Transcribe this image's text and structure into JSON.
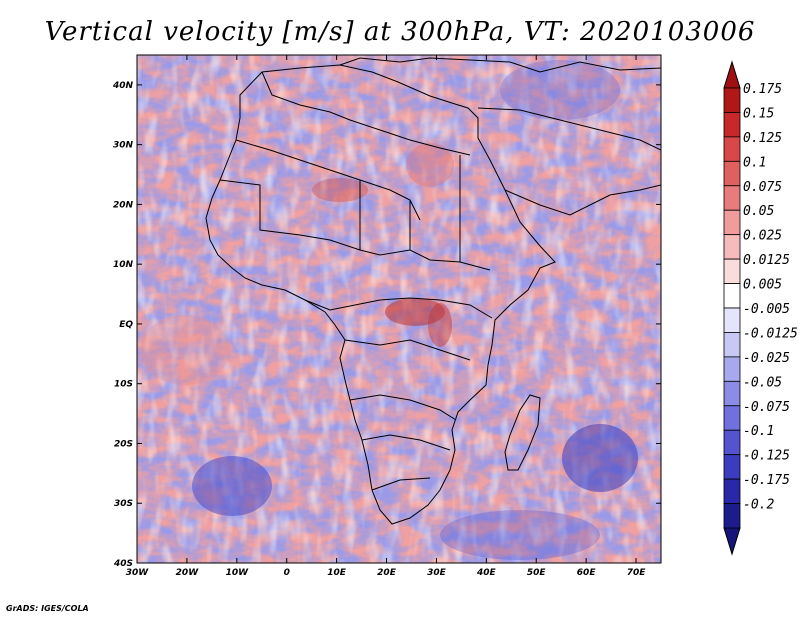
{
  "title": "Vertical velocity [m/s] at 300hPa, VT: 2020103006",
  "credit": "GrADS: IGES/COLA",
  "map": {
    "lon_range": [
      -30,
      75
    ],
    "lat_range": [
      -40,
      45
    ],
    "lon_ticks": [
      {
        "lon": -30,
        "label": "30W"
      },
      {
        "lon": -20,
        "label": "20W"
      },
      {
        "lon": -10,
        "label": "10W"
      },
      {
        "lon": 0,
        "label": "0"
      },
      {
        "lon": 10,
        "label": "10E"
      },
      {
        "lon": 20,
        "label": "20E"
      },
      {
        "lon": 30,
        "label": "30E"
      },
      {
        "lon": 40,
        "label": "40E"
      },
      {
        "lon": 50,
        "label": "50E"
      },
      {
        "lon": 60,
        "label": "60E"
      },
      {
        "lon": 70,
        "label": "70E"
      }
    ],
    "lat_ticks": [
      {
        "lat": 40,
        "label": "40N"
      },
      {
        "lat": 30,
        "label": "30N"
      },
      {
        "lat": 20,
        "label": "20N"
      },
      {
        "lat": 10,
        "label": "10N"
      },
      {
        "lat": 0,
        "label": "EQ"
      },
      {
        "lat": -10,
        "label": "10S"
      },
      {
        "lat": -20,
        "label": "20S"
      },
      {
        "lat": -30,
        "label": "30S"
      },
      {
        "lat": -40,
        "label": "40S"
      }
    ]
  },
  "colorbar": {
    "levels": [
      "0.175",
      "0.15",
      "0.125",
      "0.1",
      "0.075",
      "0.05",
      "0.025",
      "0.0125",
      "0.005",
      "-0.005",
      "-0.0125",
      "-0.025",
      "-0.05",
      "-0.075",
      "-0.1",
      "-0.125",
      "-0.175",
      "-0.2"
    ],
    "colors": [
      "#b01818",
      "#c82828",
      "#d84848",
      "#e06060",
      "#e87c7c",
      "#f09c9c",
      "#f6bcbc",
      "#fadcdc",
      "#ffffff",
      "#e4e4fa",
      "#c8c8f4",
      "#a8a8ee",
      "#8c8ce6",
      "#7070de",
      "#5454d0",
      "#3c3cc0",
      "#2828a8",
      "#1c1c8c"
    ],
    "top_arrow_color": "#a01010",
    "bottom_arrow_color": "#14147a"
  }
}
